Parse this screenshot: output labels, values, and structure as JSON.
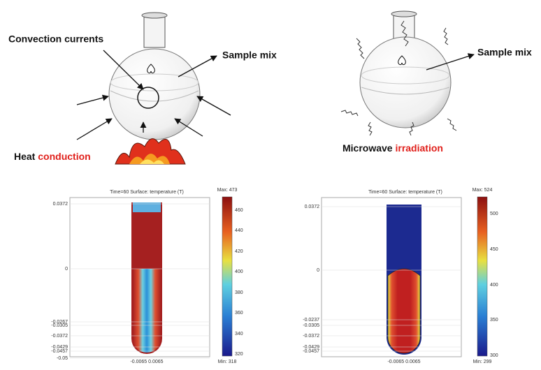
{
  "conventional": {
    "convection": "Convection currents",
    "sample_mix": "Sample mix",
    "heat": "Heat",
    "conduction": "conduction"
  },
  "microwave": {
    "sample_mix": "Sample mix",
    "microwave": "Microwave",
    "irradiation": "irradiation"
  },
  "plot_left": {
    "title": "Time=60  Surface: temperature (T)",
    "max": "Max: 473",
    "min": "Min: 318",
    "colorbar_ticks": [
      "460",
      "440",
      "420",
      "400",
      "380",
      "360",
      "340",
      "320"
    ],
    "y_ticks": [
      "0.0372",
      "0",
      "-0.0267",
      "-0.0305",
      "-0.0372",
      "-0.0429",
      "-0.0457",
      "-0.05"
    ],
    "x_ticks": "-0.0065 0.0065"
  },
  "plot_right": {
    "title": "Time=60  Surface: temperature (T)",
    "max": "Max: 524",
    "min": "Min: 299",
    "colorbar_ticks": [
      "500",
      "450",
      "400",
      "350",
      "300"
    ],
    "y_ticks": [
      "0.0372",
      "0",
      "-0.0237",
      "-0.0305",
      "-0.0372",
      "-0.0429",
      "-0.0457"
    ],
    "x_ticks": "-0.0065 0.0065"
  }
}
